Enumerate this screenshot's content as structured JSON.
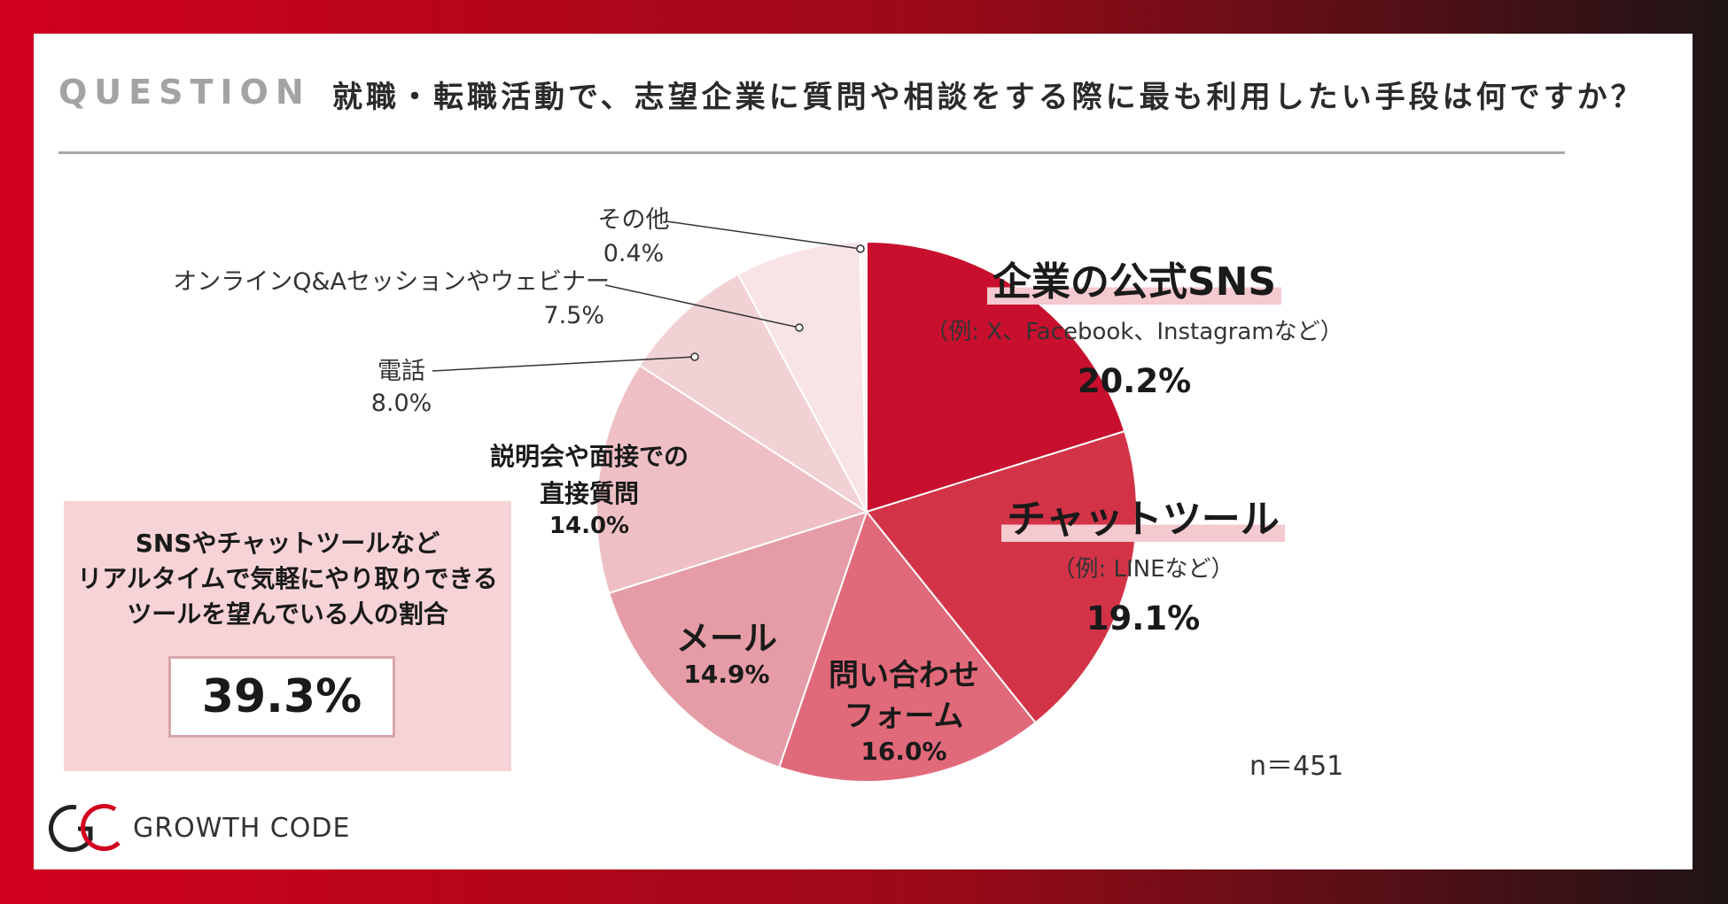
{
  "header": {
    "label": "QUESTION",
    "question": "就職・転職活動で、志望企業に質問や相談をする際に最も利用したい手段は何ですか？"
  },
  "chart_data": {
    "type": "pie",
    "title": "就職・転職活動で、志望企業に質問や相談をする際に最も利用したい手段は何ですか？",
    "n_label": "n＝451",
    "slices": [
      {
        "label": "企業の公式SNS",
        "sub": "（例: X、Facebook、Instagramなど）",
        "value": 20.2,
        "display": "20.2%",
        "color": "#c8102e"
      },
      {
        "label": "チャットツール",
        "sub": "（例: LINEなど）",
        "value": 19.1,
        "display": "19.1%",
        "color": "#d33347"
      },
      {
        "label": "問い合わせ",
        "label2": "フォーム",
        "value": 16.0,
        "display": "16.0%",
        "color": "#e16a7a"
      },
      {
        "label": "メール",
        "value": 14.9,
        "display": "14.9%",
        "color": "#e69ca6"
      },
      {
        "label": "説明会や面接での",
        "label2": "直接質問",
        "value": 14.0,
        "display": "14.0%",
        "color": "#eec0c6"
      },
      {
        "label": "電話",
        "value": 8.0,
        "display": "8.0%",
        "color": "#f2d1d5"
      },
      {
        "label": "オンラインQ&Aセッションやウェビナー",
        "value": 7.5,
        "display": "7.5%",
        "color": "#f8e3e6"
      },
      {
        "label": "その他",
        "value": 0.4,
        "display": "0.4%",
        "color": "#fdf5f6"
      }
    ]
  },
  "summary": {
    "line1": "SNSやチャットツールなど",
    "line2": "リアルタイムで気軽にやり取りできる",
    "line3": "ツールを望んでいる人の割合",
    "value": "39.3%"
  },
  "logo": {
    "text": "GROWTH CODE"
  }
}
